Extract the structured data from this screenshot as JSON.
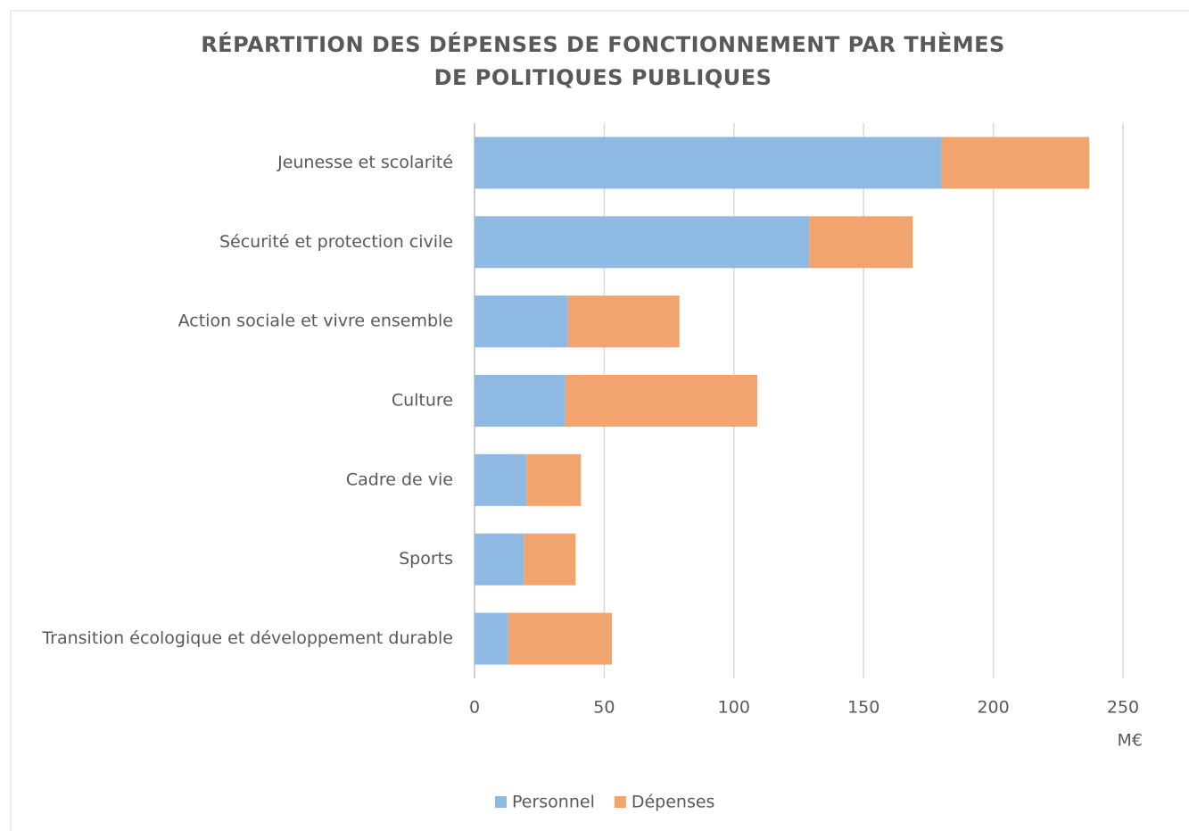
{
  "chart_data": {
    "type": "stacked_barh",
    "title": "RÉPARTITION DES DÉPENSES DE FONCTIONNEMENT PAR THÈMES DE POLITIQUES PUBLIQUES",
    "categories": [
      "Jeunesse et scolarité",
      "Sécurité et protection civile",
      "Action sociale et vivre ensemble",
      "Culture",
      "Cadre de vie",
      "Sports",
      "Transition écologique et développement durable"
    ],
    "series": [
      {
        "name": "Personnel",
        "color": "#8db9e3",
        "values": [
          180,
          129,
          36,
          35,
          20,
          19,
          13
        ]
      },
      {
        "name": "Dépenses",
        "color": "#f2a46f",
        "values": [
          57,
          40,
          43,
          74,
          21,
          20,
          40
        ]
      }
    ],
    "xlim": [
      0,
      250
    ],
    "xticks": [
      0,
      50,
      100,
      150,
      200,
      250
    ],
    "xlabel": "M€",
    "grid": true,
    "legend": "bottom"
  }
}
